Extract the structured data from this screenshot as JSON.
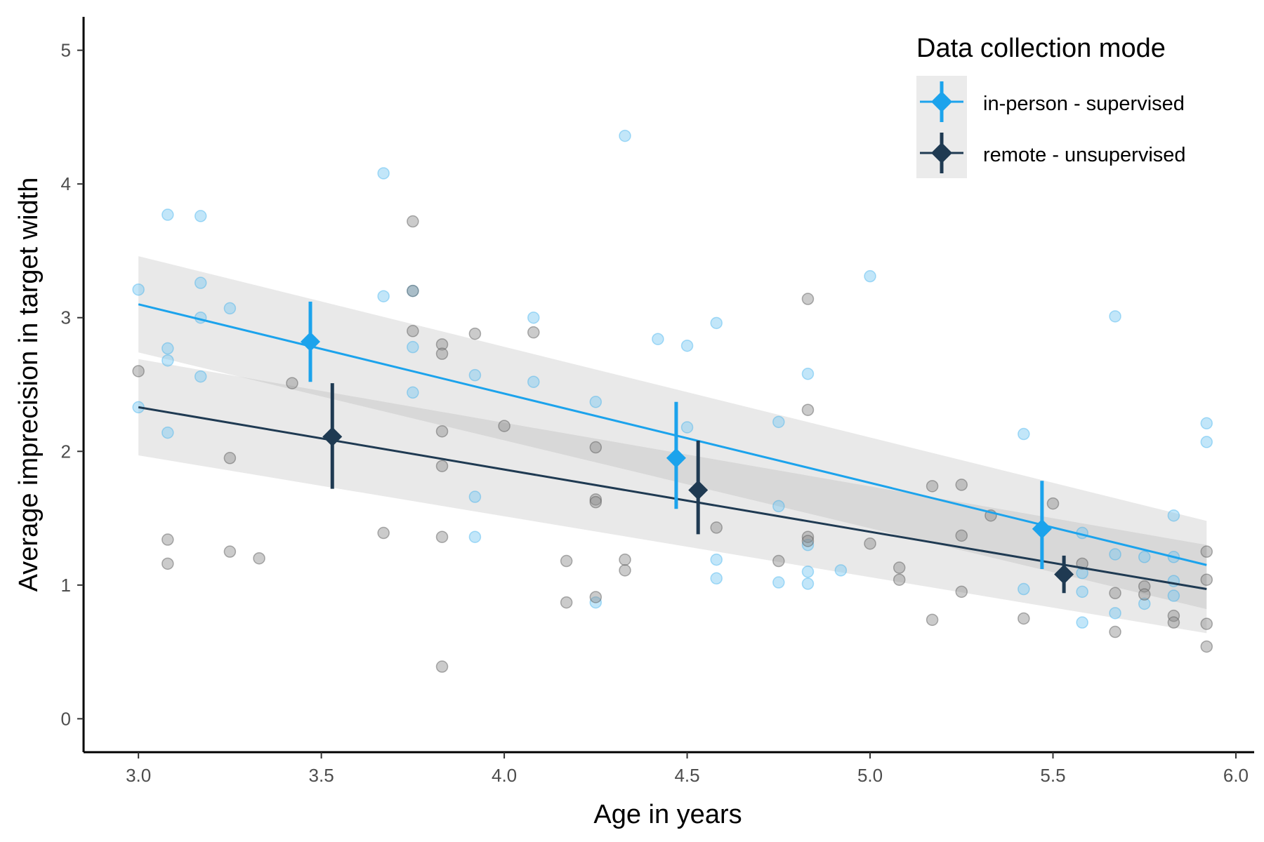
{
  "chart_data": {
    "type": "scatter",
    "title": "",
    "xlabel": "Age in years",
    "ylabel": "Average imprecision in target width",
    "xlim": [
      2.85,
      6.05
    ],
    "ylim": [
      -0.25,
      5.25
    ],
    "x_ticks": [
      "3.0",
      "3.5",
      "4.0",
      "4.5",
      "5.0",
      "5.5",
      "6.0"
    ],
    "y_ticks": [
      "0",
      "1",
      "2",
      "3",
      "4",
      "5"
    ],
    "grid": false,
    "legend": {
      "title": "Data collection mode",
      "placement": "top-right"
    },
    "series": [
      {
        "name": "in-person - supervised",
        "color": "#1ca3ec",
        "points": [
          [
            3.0,
            3.21
          ],
          [
            3.0,
            2.33
          ],
          [
            3.08,
            3.77
          ],
          [
            3.08,
            2.77
          ],
          [
            3.08,
            2.68
          ],
          [
            3.08,
            2.14
          ],
          [
            3.17,
            3.76
          ],
          [
            3.17,
            3.26
          ],
          [
            3.17,
            3.0
          ],
          [
            3.17,
            2.56
          ],
          [
            3.25,
            3.07
          ],
          [
            3.67,
            4.08
          ],
          [
            3.67,
            3.16
          ],
          [
            3.75,
            3.2
          ],
          [
            3.75,
            2.78
          ],
          [
            3.75,
            2.44
          ],
          [
            3.92,
            2.57
          ],
          [
            3.92,
            1.66
          ],
          [
            3.92,
            1.36
          ],
          [
            4.08,
            3.0
          ],
          [
            4.08,
            2.52
          ],
          [
            4.25,
            2.37
          ],
          [
            4.25,
            0.87
          ],
          [
            4.33,
            4.36
          ],
          [
            4.42,
            2.84
          ],
          [
            4.5,
            2.79
          ],
          [
            4.5,
            2.18
          ],
          [
            4.58,
            2.96
          ],
          [
            4.58,
            1.19
          ],
          [
            4.58,
            1.05
          ],
          [
            4.75,
            2.22
          ],
          [
            4.75,
            1.59
          ],
          [
            4.75,
            1.02
          ],
          [
            4.83,
            2.58
          ],
          [
            4.83,
            1.3
          ],
          [
            4.83,
            1.1
          ],
          [
            4.83,
            1.01
          ],
          [
            4.92,
            1.11
          ],
          [
            5.0,
            3.31
          ],
          [
            5.42,
            2.13
          ],
          [
            5.42,
            0.97
          ],
          [
            5.58,
            1.39
          ],
          [
            5.58,
            1.09
          ],
          [
            5.58,
            0.95
          ],
          [
            5.58,
            0.72
          ],
          [
            5.67,
            3.01
          ],
          [
            5.67,
            1.23
          ],
          [
            5.67,
            0.79
          ],
          [
            5.75,
            1.21
          ],
          [
            5.75,
            0.86
          ],
          [
            5.83,
            1.52
          ],
          [
            5.83,
            1.21
          ],
          [
            5.83,
            1.03
          ],
          [
            5.83,
            0.92
          ],
          [
            5.92,
            2.21
          ],
          [
            5.92,
            2.07
          ]
        ],
        "fit": {
          "x": [
            3.0,
            5.92
          ],
          "y": [
            3.1,
            1.15
          ],
          "ci_lower": [
            2.74,
            0.82
          ],
          "ci_upper": [
            3.46,
            1.48
          ]
        },
        "summary": [
          {
            "x": 3.47,
            "y": 2.82,
            "lo": 2.52,
            "hi": 3.12
          },
          {
            "x": 4.47,
            "y": 1.95,
            "lo": 1.57,
            "hi": 2.37
          },
          {
            "x": 5.47,
            "y": 1.42,
            "lo": 1.12,
            "hi": 1.78
          }
        ]
      },
      {
        "name": "remote - unsupervised",
        "color": "#1f3a52",
        "points": [
          [
            3.0,
            2.6
          ],
          [
            3.08,
            1.34
          ],
          [
            3.08,
            1.16
          ],
          [
            3.25,
            1.95
          ],
          [
            3.25,
            1.25
          ],
          [
            3.33,
            1.2
          ],
          [
            3.42,
            2.51
          ],
          [
            3.67,
            1.39
          ],
          [
            3.75,
            3.72
          ],
          [
            3.75,
            3.2
          ],
          [
            3.75,
            2.9
          ],
          [
            3.83,
            2.8
          ],
          [
            3.83,
            2.73
          ],
          [
            3.83,
            2.15
          ],
          [
            3.83,
            1.89
          ],
          [
            3.83,
            1.36
          ],
          [
            3.83,
            0.39
          ],
          [
            3.92,
            2.88
          ],
          [
            4.0,
            2.19
          ],
          [
            4.08,
            2.89
          ],
          [
            4.17,
            1.18
          ],
          [
            4.17,
            0.87
          ],
          [
            4.25,
            2.03
          ],
          [
            4.25,
            1.64
          ],
          [
            4.25,
            1.62
          ],
          [
            4.25,
            0.91
          ],
          [
            4.33,
            1.19
          ],
          [
            4.33,
            1.11
          ],
          [
            4.58,
            1.43
          ],
          [
            4.75,
            1.18
          ],
          [
            4.83,
            3.14
          ],
          [
            4.83,
            2.31
          ],
          [
            4.83,
            1.36
          ],
          [
            4.83,
            1.33
          ],
          [
            5.0,
            1.31
          ],
          [
            5.08,
            1.13
          ],
          [
            5.08,
            1.04
          ],
          [
            5.17,
            1.74
          ],
          [
            5.17,
            0.74
          ],
          [
            5.25,
            1.75
          ],
          [
            5.25,
            1.37
          ],
          [
            5.25,
            0.95
          ],
          [
            5.33,
            1.52
          ],
          [
            5.42,
            0.75
          ],
          [
            5.5,
            1.61
          ],
          [
            5.58,
            1.16
          ],
          [
            5.67,
            0.94
          ],
          [
            5.67,
            0.65
          ],
          [
            5.75,
            0.99
          ],
          [
            5.75,
            0.93
          ],
          [
            5.83,
            0.77
          ],
          [
            5.83,
            0.72
          ],
          [
            5.92,
            1.25
          ],
          [
            5.92,
            1.04
          ],
          [
            5.92,
            0.71
          ],
          [
            5.92,
            0.54
          ]
        ],
        "fit": {
          "x": [
            3.0,
            5.92
          ],
          "y": [
            2.33,
            0.97
          ],
          "ci_lower": [
            1.97,
            0.64
          ],
          "ci_upper": [
            2.69,
            1.3
          ]
        },
        "summary": [
          {
            "x": 3.53,
            "y": 2.11,
            "lo": 1.72,
            "hi": 2.51
          },
          {
            "x": 4.53,
            "y": 1.71,
            "lo": 1.38,
            "hi": 2.08
          },
          {
            "x": 5.53,
            "y": 1.08,
            "lo": 0.94,
            "hi": 1.22
          }
        ]
      }
    ]
  }
}
